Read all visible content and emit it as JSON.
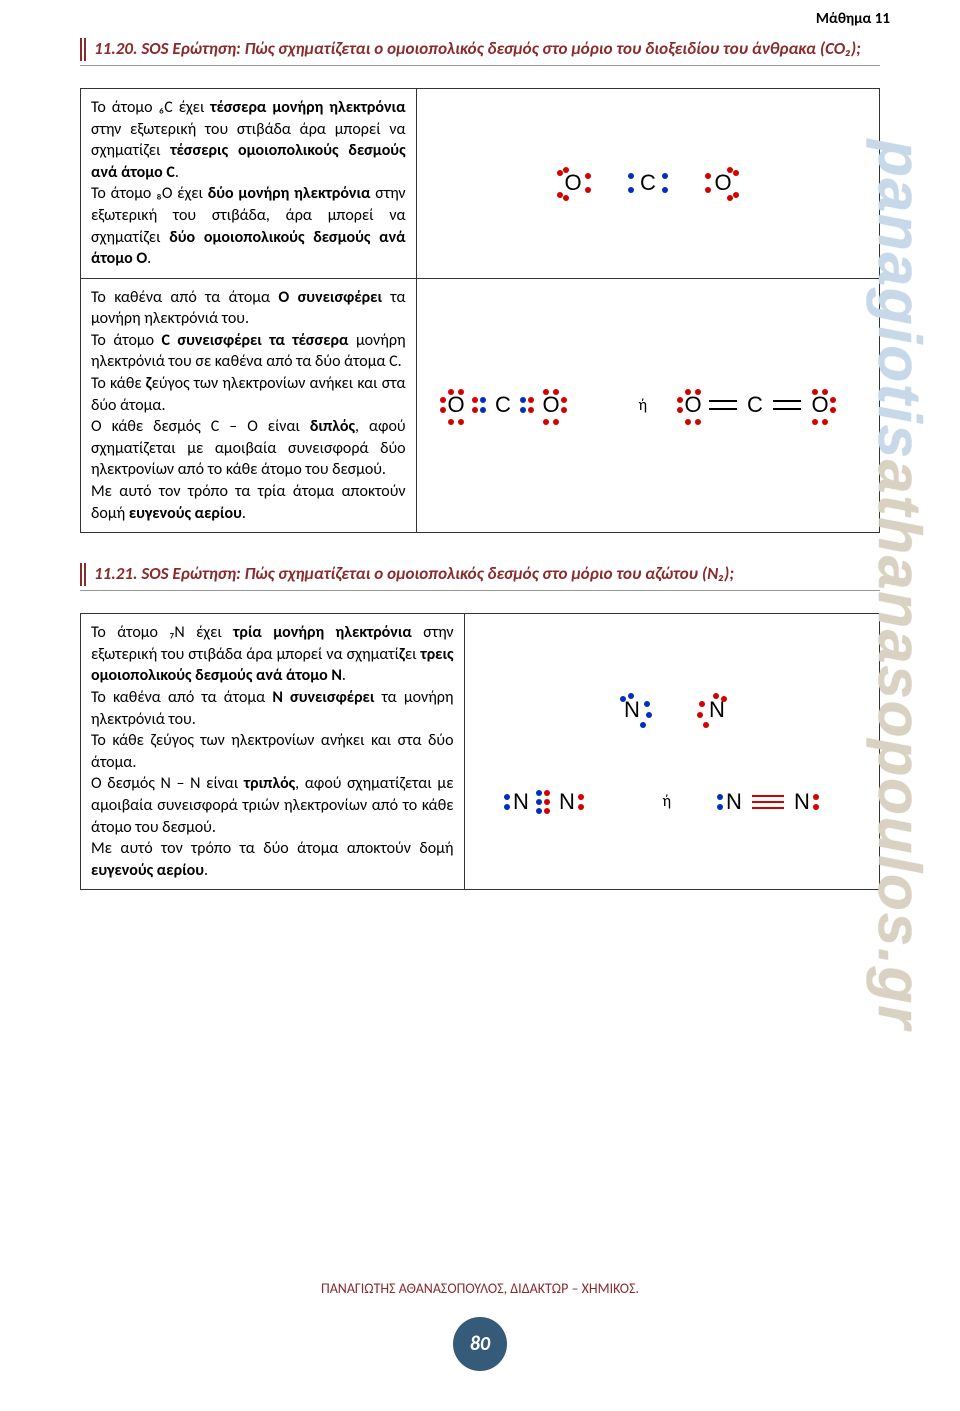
{
  "header": {
    "lesson": "Μάθημα 11"
  },
  "q20": {
    "heading": "11.20. SOS Ερώτηση:  Πώς σχηματίζεται ο ομοιοπολικός δεσμός στο μόριο του διοξειδίου του άνθρακα (CO₂);",
    "row1": "Το άτομο ₆C έχει τέσσερα μονήρη ηλεκτρόνια στην εξωτερική του στιβάδα άρα μπορεί να σχηματίζει τέσσερις ομοιοπολικούς δεσμούς ανά άτομο C.\nΤο άτομο ₈O έχει δύο μονήρη ηλεκτρόνια στην εξωτερική του στιβάδα, άρα μπορεί να σχηματίζει δύο ομοιοπολικούς δεσμούς ανά άτομο O.",
    "row2": "Το καθένα από τα άτομα O συνεισφέρει τα μονήρη ηλεκτρόνιά του.\nΤο άτομο C συνεισφέρει τα τέσσερα μονήρη ηλεκτρόνιά του σε καθένα από τα δύο άτομα C.\nΤο κάθε ζεύγος των ηλεκτρονίων ανήκει και στα δύο άτομα.\nΟ κάθε δεσμός C – O είναι διπλός, αφού σχηματίζεται με αμοιβαία συνεισφορά δύο ηλεκτρονίων από το κάθε άτομο του δεσμού.\nΜε αυτό τον τρόπο τα τρία άτομα αποκτούν δομή ευγενούς αερίου.",
    "or": "ή"
  },
  "q21": {
    "heading": "11.21. SOS Ερώτηση:  Πώς σχηματίζεται ο ομοιοπολικός δεσμός στο μόριο του αζώτου (N₂);",
    "row1": "Το άτομο ₇N έχει τρία μονήρη ηλεκτρόνια στην εξωτερική του στιβάδα άρα μπορεί να σχηματίζει τρεις ομοιοπολικούς δεσμούς ανά άτομο N.\nΤο καθένα από τα άτομα N συνεισφέρει τα μονήρη ηλεκτρόνιά του.\nΤο κάθε ζεύγος των ηλεκτρονίων ανήκει και στα δύο άτομα.\nΟ δεσμός N – N είναι τριπλός, αφού σχηματίζεται με αμοιβαία συνεισφορά τριών ηλεκτρονίων από το κάθε άτομο του δεσμού.\nΜε αυτό τον τρόπο τα δύο άτομα αποκτούν δομή ευγενούς αερίου.",
    "or": "ή"
  },
  "colors": {
    "red_e": "#d40000",
    "blue_e": "#0030c0",
    "bond_red": "#d40000",
    "atom_text": "#000000",
    "question_color": "#8a2a2a"
  },
  "watermark": "panagiotisathanasopoulos.gr",
  "footer": {
    "author": "ΠΑΝΑΓΙΩΤΗΣ ΑΘΑΝΑΣΟΠΟΥΛΟΣ, ΔΙΔΑΚΤΩΡ – ΧΗΜΙΚΟΣ.",
    "page": "80"
  }
}
